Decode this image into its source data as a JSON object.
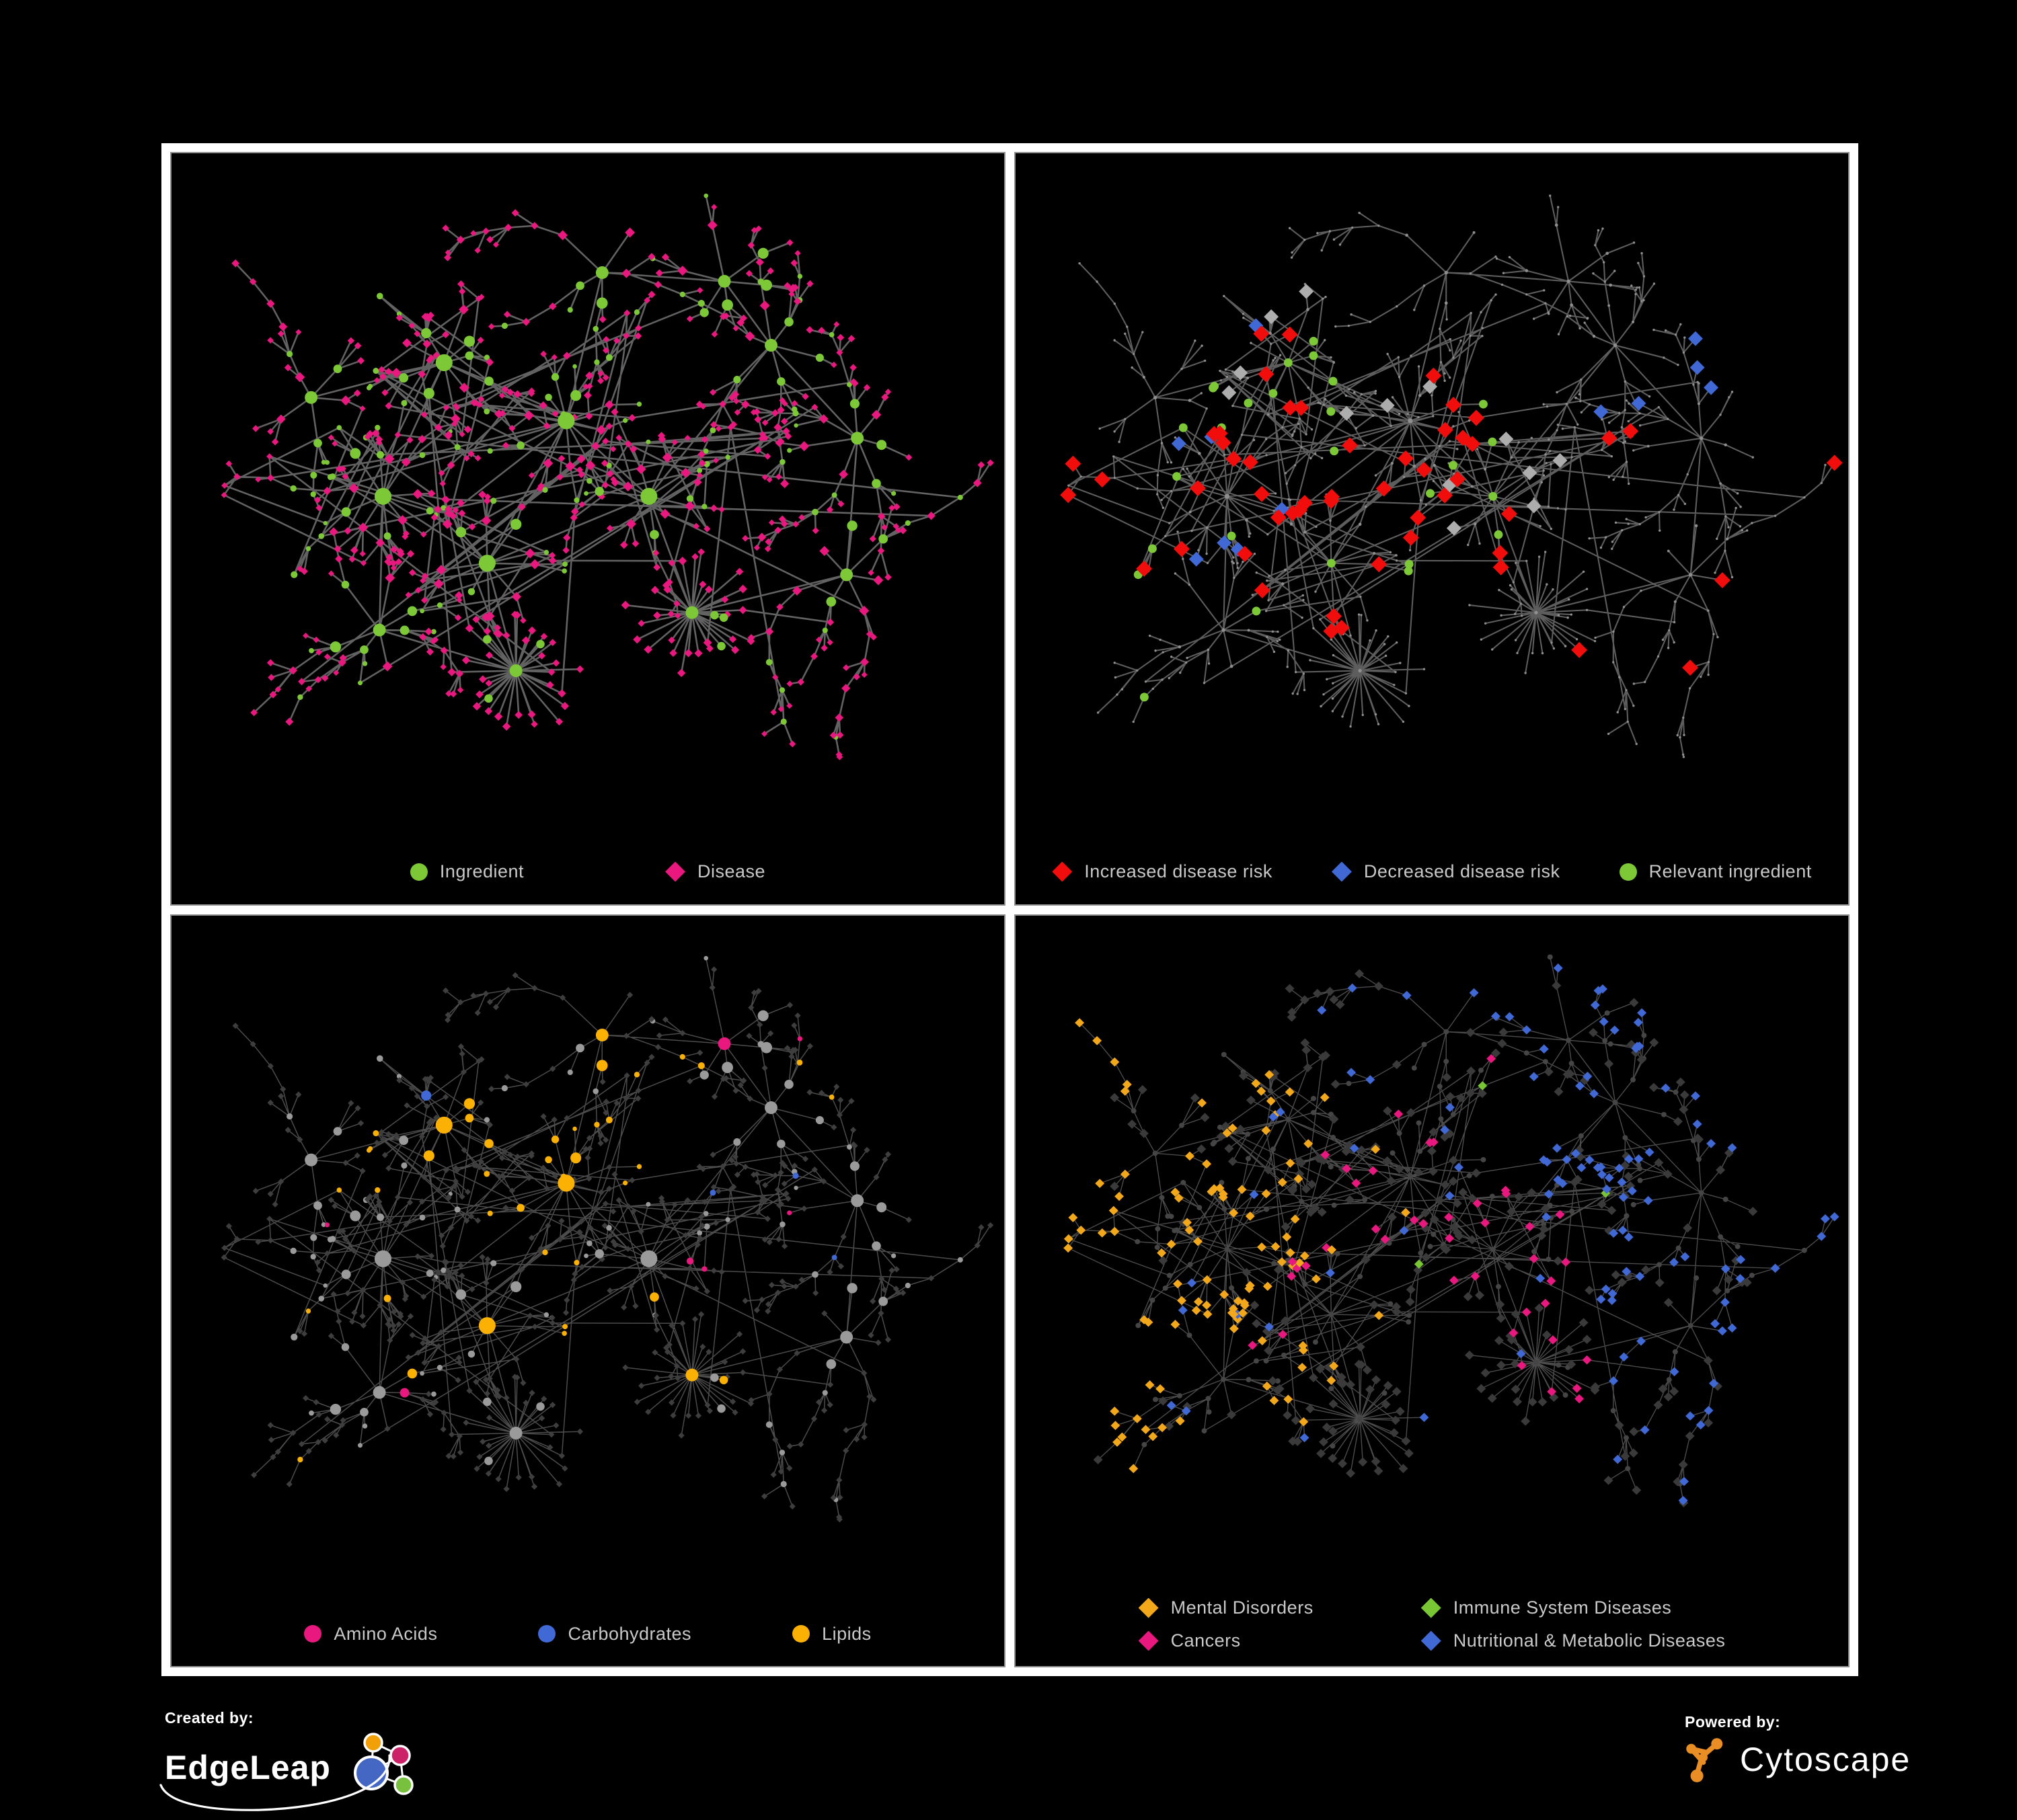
{
  "palette": {
    "green": "#7CC837",
    "pink": "#E8187F",
    "red": "#F20D0D",
    "blue": "#4169D6",
    "lipid_orange": "#FBB004",
    "mental_orange": "#F3A81C",
    "immune_green": "#79C635",
    "highlight_gray": "#ADADAD",
    "base_dot_gray": "#8F8F8F",
    "node_gray": "#9A9A9A",
    "node_dark_diamond": "#3A3A3A",
    "node_dark_circle": "#454545",
    "edge_colors": [
      "#6A6A6A",
      "#6D6D6D",
      "#7E7E7E",
      "#747474"
    ],
    "legend_text": "#C9C9C9",
    "frame_white": "#FFFFFF",
    "background_black": "#000000",
    "cytoscape_orange": "#E98E24",
    "edgeleap_blue": "#4467C4",
    "edgeleap_pink": "#CC2368",
    "edgeleap_orange": "#F2A007",
    "edgeleap_green": "#77C13F"
  },
  "panels": [
    {
      "id": "ingredient-disease",
      "legend": [
        {
          "label": "Ingredient",
          "shape": "circle",
          "color": "#7CC837"
        },
        {
          "label": "Disease",
          "shape": "diamond",
          "color": "#E8187F"
        }
      ]
    },
    {
      "id": "disease-risk",
      "legend": [
        {
          "label": "Increased disease risk",
          "shape": "diamond",
          "color": "#F20D0D"
        },
        {
          "label": "Decreased disease risk",
          "shape": "diamond",
          "color": "#4169D6"
        },
        {
          "label": "Relevant ingredient",
          "shape": "circle",
          "color": "#7CC837"
        }
      ]
    },
    {
      "id": "nutrient-classes",
      "legend": [
        {
          "label": "Amino Acids",
          "shape": "circle",
          "color": "#E8187F"
        },
        {
          "label": "Carbohydrates",
          "shape": "circle",
          "color": "#4169D6"
        },
        {
          "label": "Lipids",
          "shape": "circle",
          "color": "#FBB004"
        }
      ]
    },
    {
      "id": "disease-categories",
      "legend": [
        {
          "label": "Mental Disorders",
          "shape": "diamond",
          "color": "#F3A81C"
        },
        {
          "label": "Immune System Diseases",
          "shape": "diamond",
          "color": "#79C635"
        },
        {
          "label": "Cancers",
          "shape": "diamond",
          "color": "#E8187F"
        },
        {
          "label": "Nutritional & Metabolic Diseases",
          "shape": "diamond",
          "color": "#4169D6"
        }
      ]
    }
  ],
  "footer": {
    "created_by_label": "Created by:",
    "created_by_name": "EdgeLeap",
    "powered_by_label": "Powered by:",
    "powered_by_name": "Cytoscape"
  }
}
